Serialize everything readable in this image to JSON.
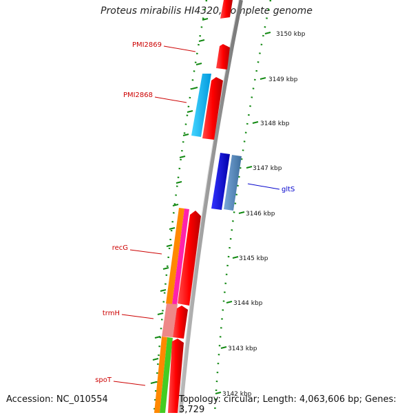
{
  "title": "Proteus mirabilis HI4320, complete genome",
  "footer": {
    "accession": "Accession: NC_010554",
    "summary": "Topology: circular; Length: 4,063,606 bp; Genes: 3,729"
  },
  "ticks": [
    {
      "label": "3150 kbp"
    },
    {
      "label": "3149 kbp"
    },
    {
      "label": "3148 kbp"
    },
    {
      "label": "3147 kbp"
    },
    {
      "label": "3146 kbp"
    },
    {
      "label": "3145 kbp"
    },
    {
      "label": "3144 kbp"
    },
    {
      "label": "3143 kbp"
    },
    {
      "label": "3142 kbp"
    }
  ],
  "gene_labels": [
    {
      "name": "PMI2869",
      "color": "#cc0000"
    },
    {
      "name": "PMI2868",
      "color": "#cc0000"
    },
    {
      "name": "gltS",
      "color": "#0000cc"
    },
    {
      "name": "recG",
      "color": "#cc0000"
    },
    {
      "name": "trmH",
      "color": "#cc0000"
    },
    {
      "name": "spoT",
      "color": "#cc0000"
    }
  ],
  "colors": {
    "forward_cds": "#ff0000",
    "reverse_cds": "#0000ee",
    "cyan_feature": "#00bbff",
    "steelblue_feature": "#5b8fc7",
    "orange_feature": "#ff8800",
    "magenta_feature": "#ff22aa",
    "pink_feature": "#ee8888",
    "green_feature": "#44cc22",
    "backbone": "#999999",
    "tick": "#118811"
  }
}
